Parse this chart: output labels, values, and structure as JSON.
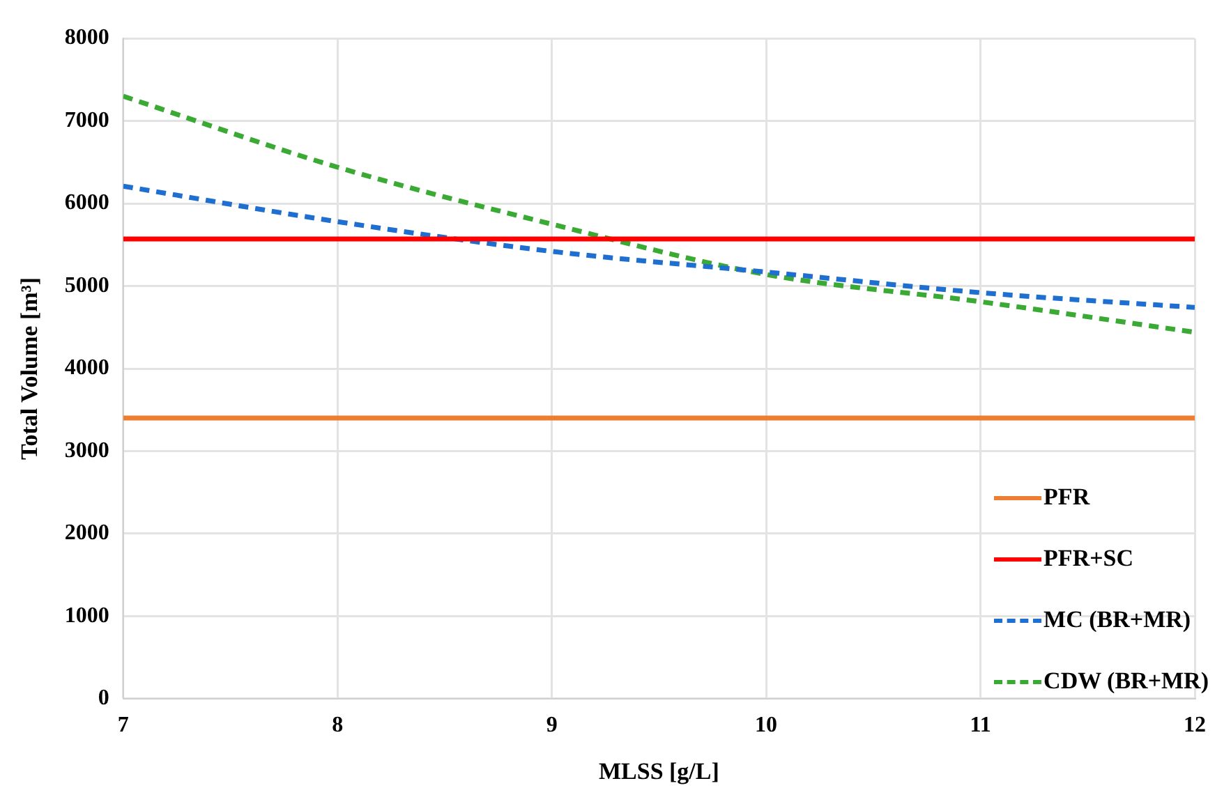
{
  "chart_data": {
    "type": "line",
    "xlabel": "MLSS [g/L]",
    "ylabel": "Total Volume [m³]",
    "x": [
      7,
      8,
      9,
      10,
      11,
      12
    ],
    "series": [
      {
        "name": "PFR",
        "color": "#ed7d31",
        "values": [
          3400,
          3400,
          3400,
          3400,
          3400,
          3400
        ],
        "line_style": "solid"
      },
      {
        "name": "PFR+SC",
        "color": "#ff0000",
        "values": [
          5570,
          5570,
          5570,
          5570,
          5570,
          5570
        ],
        "line_style": "solid"
      },
      {
        "name": "MC (BR+MR)",
        "color": "#1f6fd0",
        "values": [
          6210,
          5780,
          5420,
          5170,
          4920,
          4740
        ],
        "line_style": "dashed"
      },
      {
        "name": "CDW (BR+MR)",
        "color": "#3aaa35",
        "values": [
          7300,
          6440,
          5750,
          5140,
          4810,
          4440
        ],
        "line_style": "dashed"
      }
    ],
    "xlim": [
      7,
      12
    ],
    "xticks": [
      7,
      8,
      9,
      10,
      11,
      12
    ],
    "ylim": [
      0,
      8000
    ],
    "yticks": [
      0,
      1000,
      2000,
      3000,
      4000,
      5000,
      6000,
      7000,
      8000
    ],
    "grid": true,
    "legend": "bottom right",
    "marker": "none"
  }
}
